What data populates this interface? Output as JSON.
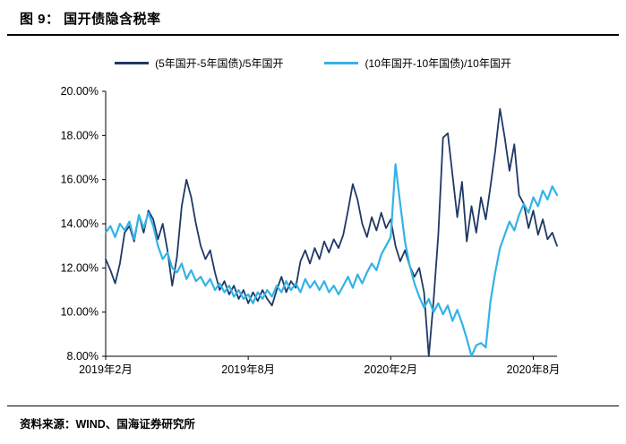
{
  "header": {
    "title": "图 9：  国开债隐含税率"
  },
  "footer": {
    "source": "资料来源：WIND、国海证券研究所"
  },
  "colors": {
    "navy": "#1F3864",
    "cyan": "#33B3E5",
    "axis": "#000000"
  },
  "chart_data": {
    "type": "line",
    "title": "国开债隐含税率",
    "xlabel": "",
    "ylabel": "",
    "grid": false,
    "legend_position": "top",
    "ylim": [
      8,
      20
    ],
    "y_ticks": [
      "20.00%",
      "18.00%",
      "16.00%",
      "14.00%",
      "12.00%",
      "10.00%",
      "8.00%"
    ],
    "x_ticks": [
      {
        "label": "2019年2月",
        "month": 0
      },
      {
        "label": "2019年8月",
        "month": 6
      },
      {
        "label": "2020年2月",
        "month": 12
      },
      {
        "label": "2020年8月",
        "month": 18
      }
    ],
    "months_span": [
      0,
      19
    ],
    "points_per_month": 5,
    "unit": "percent",
    "series": [
      {
        "name": "(5年国开-5年国债)/5年国开",
        "color": "#1F3864",
        "values": [
          12.4,
          11.9,
          11.3,
          12.2,
          13.6,
          13.9,
          13.2,
          14.4,
          13.6,
          14.6,
          14.2,
          13.3,
          14.0,
          12.8,
          11.2,
          12.5,
          14.8,
          16.0,
          15.2,
          14.0,
          13.0,
          12.4,
          12.8,
          11.8,
          11.0,
          11.4,
          10.8,
          11.2,
          10.6,
          11.0,
          10.4,
          10.9,
          10.5,
          11.0,
          10.6,
          10.3,
          11.0,
          11.6,
          10.9,
          11.4,
          11.1,
          12.3,
          12.8,
          12.2,
          12.9,
          12.4,
          13.2,
          12.7,
          13.3,
          12.9,
          13.5,
          14.6,
          15.8,
          15.1,
          14.0,
          13.4,
          14.3,
          13.7,
          14.5,
          13.8,
          14.2,
          13.0,
          12.3,
          12.8,
          12.1,
          11.6,
          12.0,
          10.9,
          8.0,
          10.5,
          13.5,
          17.9,
          18.1,
          16.2,
          14.3,
          15.9,
          13.2,
          14.8,
          13.6,
          15.2,
          14.2,
          15.7,
          17.3,
          19.2,
          17.9,
          16.4,
          17.6,
          15.3,
          14.9,
          13.8,
          14.6,
          13.5,
          14.2,
          13.3,
          13.6,
          13.0
        ]
      },
      {
        "name": "(10年国开-10年国债)/10年国开",
        "color": "#33B3E5",
        "values": [
          13.6,
          13.9,
          13.4,
          14.0,
          13.7,
          14.1,
          13.3,
          14.4,
          13.8,
          14.5,
          13.9,
          13.0,
          12.4,
          12.7,
          12.0,
          11.8,
          12.2,
          11.5,
          11.9,
          11.4,
          11.6,
          11.2,
          11.5,
          11.0,
          11.3,
          10.9,
          11.2,
          10.7,
          11.0,
          10.6,
          10.8,
          10.4,
          10.9,
          10.6,
          11.0,
          10.7,
          11.2,
          10.9,
          11.4,
          11.0,
          11.3,
          10.9,
          11.5,
          11.1,
          11.4,
          11.0,
          11.4,
          10.9,
          11.2,
          10.8,
          11.2,
          11.6,
          11.1,
          11.7,
          11.3,
          11.8,
          12.2,
          11.9,
          12.6,
          13.0,
          13.4,
          16.7,
          14.9,
          13.2,
          12.1,
          11.3,
          10.7,
          10.2,
          10.6,
          10.0,
          10.4,
          9.9,
          10.3,
          9.6,
          10.1,
          9.5,
          8.8,
          7.8,
          8.5,
          8.6,
          8.4,
          10.5,
          11.8,
          12.9,
          13.5,
          14.1,
          13.7,
          14.4,
          14.9,
          14.5,
          15.2,
          14.8,
          15.5,
          15.1,
          15.7,
          15.3
        ]
      }
    ]
  }
}
